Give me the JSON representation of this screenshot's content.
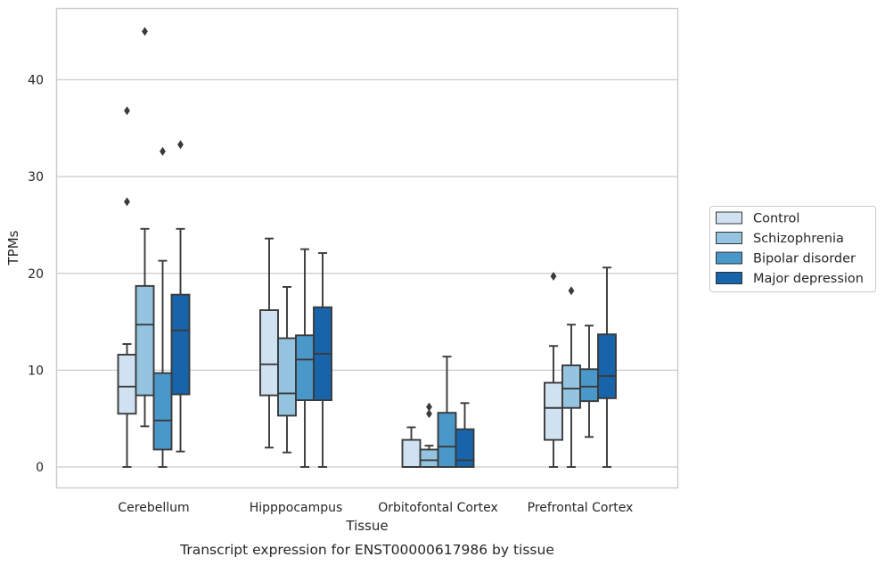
{
  "chart_data": {
    "type": "box",
    "title": "",
    "caption": "Transcript expression for ENST00000617986 by tissue",
    "xlabel": "Tissue",
    "ylabel": "TPMs",
    "ylim": [
      -2.2,
      47.5
    ],
    "yticks": [
      0,
      10,
      20,
      30,
      40
    ],
    "grid": "horizontal",
    "legend_position": "right",
    "categories": [
      "Cerebellum",
      "Hipppocampus",
      "Orbitofontal Cortex",
      "Prefrontal Cortex"
    ],
    "series": [
      {
        "name": "Control",
        "color": "#d0e1f2",
        "boxes": [
          {
            "whislo": 0,
            "q1": 5.5,
            "med": 8.3,
            "q3": 11.6,
            "whishi": 12.7,
            "fliers": [
              27.4,
              36.8
            ]
          },
          {
            "whislo": 2.0,
            "q1": 7.4,
            "med": 10.6,
            "q3": 16.2,
            "whishi": 23.6,
            "fliers": []
          },
          {
            "whislo": 0,
            "q1": 0,
            "med": 0,
            "q3": 2.8,
            "whishi": 4.1,
            "fliers": []
          },
          {
            "whislo": 0,
            "q1": 2.8,
            "med": 6.1,
            "q3": 8.7,
            "whishi": 12.5,
            "fliers": [
              19.7
            ]
          }
        ]
      },
      {
        "name": "Schizophrenia",
        "color": "#94c4df",
        "boxes": [
          {
            "whislo": 4.2,
            "q1": 7.4,
            "med": 14.7,
            "q3": 18.7,
            "whishi": 24.6,
            "fliers": [
              45.0
            ]
          },
          {
            "whislo": 1.5,
            "q1": 5.3,
            "med": 7.6,
            "q3": 13.3,
            "whishi": 18.6,
            "fliers": []
          },
          {
            "whislo": 0,
            "q1": 0,
            "med": 0.7,
            "q3": 1.8,
            "whishi": 2.2,
            "fliers": [
              5.5,
              6.2
            ]
          },
          {
            "whislo": 0,
            "q1": 6.1,
            "med": 8.1,
            "q3": 10.5,
            "whishi": 14.7,
            "fliers": [
              18.2
            ]
          }
        ]
      },
      {
        "name": "Bipolar disorder",
        "color": "#4a98c9",
        "boxes": [
          {
            "whislo": 0,
            "q1": 1.8,
            "med": 4.8,
            "q3": 9.7,
            "whishi": 21.3,
            "fliers": [
              32.6
            ]
          },
          {
            "whislo": 0,
            "q1": 6.9,
            "med": 11.1,
            "q3": 13.6,
            "whishi": 22.5,
            "fliers": []
          },
          {
            "whislo": 0,
            "q1": 0,
            "med": 2.1,
            "q3": 5.6,
            "whishi": 11.4,
            "fliers": []
          },
          {
            "whislo": 3.1,
            "q1": 6.8,
            "med": 8.3,
            "q3": 10.1,
            "whishi": 14.6,
            "fliers": []
          }
        ]
      },
      {
        "name": "Major depression",
        "color": "#1764ab",
        "boxes": [
          {
            "whislo": 1.6,
            "q1": 7.5,
            "med": 14.1,
            "q3": 17.8,
            "whishi": 24.6,
            "fliers": [
              33.3
            ]
          },
          {
            "whislo": 0,
            "q1": 6.9,
            "med": 11.7,
            "q3": 16.5,
            "whishi": 22.1,
            "fliers": []
          },
          {
            "whislo": 0,
            "q1": 0,
            "med": 0.7,
            "q3": 3.9,
            "whishi": 6.6,
            "fliers": []
          },
          {
            "whislo": 0,
            "q1": 7.1,
            "med": 9.4,
            "q3": 13.7,
            "whishi": 20.6,
            "fliers": []
          }
        ]
      }
    ]
  },
  "style": {
    "edge_color": "#3a3a3a",
    "grid_color": "#cccccc",
    "spine_color": "#cccccc",
    "background": "#ffffff"
  }
}
